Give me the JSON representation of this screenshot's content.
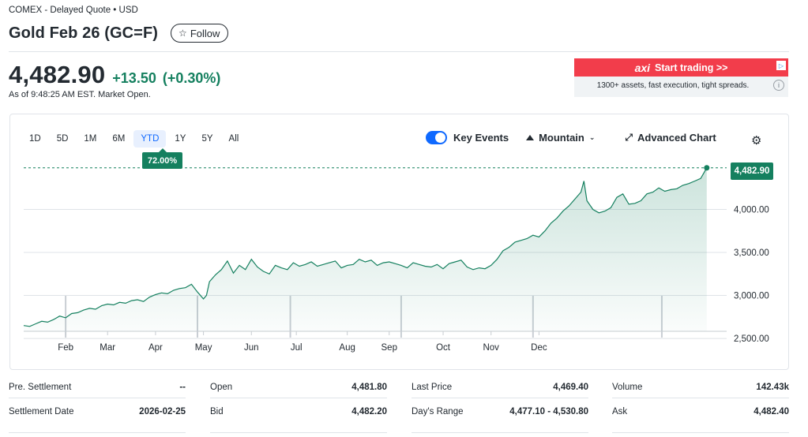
{
  "header": {
    "exchange_line": "COMEX - Delayed Quote • USD",
    "title": "Gold Feb 26 (GC=F)",
    "follow_label": "Follow",
    "follow_icon": "star-outline-icon"
  },
  "quote": {
    "price": "4,482.90",
    "change": "+13.50",
    "change_pct": "(+0.30%)",
    "as_of": "As of 9:48:25 AM EST. Market Open.",
    "change_color": "#15805f"
  },
  "ad": {
    "brand": "axi",
    "cta": "Start trading >>",
    "subtext": "1300+ assets, fast execution, tight spreads.",
    "info": "i",
    "banner_color": "#f23d4b"
  },
  "chart_controls": {
    "ranges": [
      "1D",
      "5D",
      "1M",
      "6M",
      "YTD",
      "1Y",
      "5Y",
      "All"
    ],
    "active_range": "YTD",
    "ytd_badge": "72.00%",
    "key_events_label": "Key Events",
    "key_events_on": true,
    "chart_type_label": "Mountain",
    "advanced_label": "Advanced Chart",
    "accent": "#0f69ff"
  },
  "chart_data": {
    "type": "area",
    "xlabel": "",
    "ylabel": "",
    "x_ticks": [
      "Feb",
      "Mar",
      "Apr",
      "May",
      "Jun",
      "Jul",
      "Aug",
      "Sep",
      "Oct",
      "Nov",
      "Dec"
    ],
    "y_ticks": [
      "2,500.00",
      "3,000.00",
      "3,500.00",
      "4,000.00"
    ],
    "y_tick_values": [
      2500,
      3000,
      3500,
      4000
    ],
    "ylim": [
      2400,
      4600
    ],
    "xlim": [
      0,
      11.6
    ],
    "last_value_label": "4,482.90",
    "last_value": 4482.9,
    "line_color": "#15805f",
    "grid": true,
    "series": [
      {
        "x": [
          0.0,
          0.1,
          0.2,
          0.3,
          0.4,
          0.5,
          0.6,
          0.7,
          0.8,
          0.9,
          1.0,
          1.1,
          1.2,
          1.3,
          1.4,
          1.5,
          1.6,
          1.7,
          1.8,
          1.9,
          2.0,
          2.1,
          2.2,
          2.3,
          2.4,
          2.5,
          2.6,
          2.7,
          2.8,
          2.9,
          3.0,
          3.05,
          3.1,
          3.2,
          3.3,
          3.4,
          3.5,
          3.6,
          3.7,
          3.8,
          3.9,
          4.0,
          4.1,
          4.2,
          4.3,
          4.4,
          4.5,
          4.6,
          4.7,
          4.8,
          4.9,
          5.0,
          5.1,
          5.2,
          5.3,
          5.4,
          5.5,
          5.6,
          5.7,
          5.8,
          5.9,
          6.0,
          6.1,
          6.2,
          6.3,
          6.4,
          6.5,
          6.6,
          6.7,
          6.8,
          6.9,
          7.0,
          7.1,
          7.2,
          7.3,
          7.4,
          7.5,
          7.6,
          7.7,
          7.8,
          7.9,
          8.0,
          8.1,
          8.2,
          8.3,
          8.4,
          8.5,
          8.6,
          8.7,
          8.8,
          8.9,
          9.0,
          9.1,
          9.2,
          9.3,
          9.35,
          9.4,
          9.5,
          9.6,
          9.7,
          9.8,
          9.9,
          10.0,
          10.1,
          10.2,
          10.3,
          10.4,
          10.5,
          10.6,
          10.7,
          10.8,
          10.9,
          11.0,
          11.1,
          11.2,
          11.3,
          11.4
        ],
        "y": [
          2650,
          2640,
          2670,
          2700,
          2690,
          2720,
          2760,
          2740,
          2790,
          2800,
          2830,
          2850,
          2840,
          2880,
          2900,
          2890,
          2920,
          2910,
          2940,
          2950,
          2930,
          2980,
          3010,
          3030,
          3020,
          3060,
          3080,
          3090,
          3130,
          3040,
          2960,
          3000,
          3160,
          3240,
          3300,
          3400,
          3260,
          3350,
          3300,
          3420,
          3330,
          3280,
          3250,
          3350,
          3320,
          3300,
          3380,
          3340,
          3360,
          3390,
          3340,
          3360,
          3380,
          3400,
          3320,
          3350,
          3360,
          3420,
          3390,
          3410,
          3350,
          3380,
          3390,
          3370,
          3350,
          3320,
          3380,
          3360,
          3340,
          3330,
          3360,
          3310,
          3370,
          3390,
          3410,
          3330,
          3300,
          3320,
          3310,
          3350,
          3420,
          3520,
          3560,
          3620,
          3640,
          3660,
          3700,
          3680,
          3750,
          3840,
          3900,
          3980,
          4040,
          4120,
          4200,
          4330,
          4100,
          4000,
          3960,
          3980,
          4020,
          4140,
          4180,
          4060,
          4070,
          4100,
          4180,
          4200,
          4250,
          4210,
          4230,
          4240,
          4280,
          4300,
          4330,
          4360,
          4482.9
        ]
      }
    ],
    "event_x": [
      0.7,
      2.9,
      4.45,
      6.3,
      8.5,
      10.65
    ]
  },
  "stats": {
    "rows": [
      [
        {
          "label": "Pre. Settlement",
          "value": "--"
        },
        {
          "label": "Open",
          "value": "4,481.80"
        },
        {
          "label": "Last Price",
          "value": "4,469.40"
        },
        {
          "label": "Volume",
          "value": "142.43k"
        }
      ],
      [
        {
          "label": "Settlement Date",
          "value": "2026-02-25"
        },
        {
          "label": "Bid",
          "value": "4,482.20"
        },
        {
          "label": "Day's Range",
          "value": "4,477.10 - 4,530.80"
        },
        {
          "label": "Ask",
          "value": "4,482.40"
        }
      ]
    ]
  }
}
